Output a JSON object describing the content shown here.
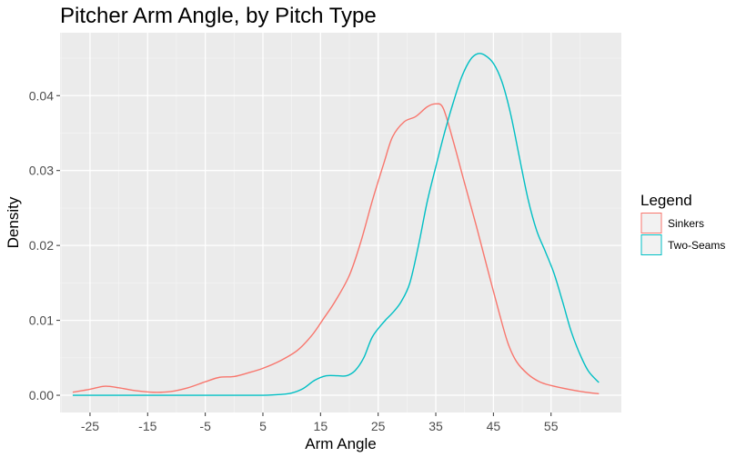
{
  "chart_data": {
    "type": "line",
    "title": "Pitcher Arm Angle, by Pitch Type",
    "xlabel": "Arm Angle",
    "ylabel": "Density",
    "xlim": [
      -30.2,
      67.2
    ],
    "ylim": [
      -0.0023,
      0.0484
    ],
    "x_ticks": [
      -25,
      -15,
      -5,
      5,
      15,
      25,
      35,
      45,
      55
    ],
    "x_tick_labels": [
      "-25",
      "-15",
      "-5",
      "5",
      "15",
      "25",
      "35",
      "45",
      "55"
    ],
    "y_ticks": [
      0.0,
      0.01,
      0.02,
      0.03,
      0.04
    ],
    "y_tick_labels": [
      "0.00",
      "0.01",
      "0.02",
      "0.03",
      "0.04"
    ],
    "grid": true,
    "legend": {
      "title": "Legend",
      "position": "right"
    },
    "series": [
      {
        "name": "Sinkers",
        "color": "#F8766D",
        "points": [
          [
            -28,
            0.0004
          ],
          [
            -25,
            0.0008
          ],
          [
            -22.5,
            0.0012
          ],
          [
            -20,
            0.001
          ],
          [
            -17,
            0.0006
          ],
          [
            -14,
            0.0004
          ],
          [
            -11,
            0.0005
          ],
          [
            -8,
            0.001
          ],
          [
            -5,
            0.0018
          ],
          [
            -2.5,
            0.0024
          ],
          [
            0,
            0.0025
          ],
          [
            2.5,
            0.003
          ],
          [
            5,
            0.0036
          ],
          [
            8,
            0.0046
          ],
          [
            11,
            0.006
          ],
          [
            13.5,
            0.008
          ],
          [
            15.5,
            0.0102
          ],
          [
            17.5,
            0.0125
          ],
          [
            20,
            0.016
          ],
          [
            22,
            0.0205
          ],
          [
            24,
            0.026
          ],
          [
            26,
            0.031
          ],
          [
            27.5,
            0.0345
          ],
          [
            29.5,
            0.0365
          ],
          [
            31.5,
            0.0372
          ],
          [
            33.5,
            0.0385
          ],
          [
            35,
            0.0389
          ],
          [
            36.3,
            0.0383
          ],
          [
            38,
            0.034
          ],
          [
            40,
            0.0283
          ],
          [
            42,
            0.0227
          ],
          [
            44,
            0.0168
          ],
          [
            46,
            0.011
          ],
          [
            47.5,
            0.007
          ],
          [
            49,
            0.0045
          ],
          [
            51,
            0.0028
          ],
          [
            53,
            0.0018
          ],
          [
            55,
            0.0013
          ],
          [
            58,
            0.0008
          ],
          [
            61,
            0.0004
          ],
          [
            63.3,
            0.0002
          ]
        ]
      },
      {
        "name": "Two-Seams",
        "color": "#00BFC4",
        "points": [
          [
            -28,
            0.0
          ],
          [
            -20,
            0.0
          ],
          [
            -10,
            0.0
          ],
          [
            0,
            0.0
          ],
          [
            5,
            0.0
          ],
          [
            8,
            0.0001
          ],
          [
            10,
            0.0003
          ],
          [
            12,
            0.0009
          ],
          [
            14,
            0.002
          ],
          [
            16,
            0.0026
          ],
          [
            18,
            0.0026
          ],
          [
            19.5,
            0.0026
          ],
          [
            21,
            0.0033
          ],
          [
            22.5,
            0.005
          ],
          [
            24,
            0.0078
          ],
          [
            26,
            0.0098
          ],
          [
            27.5,
            0.011
          ],
          [
            29,
            0.0125
          ],
          [
            30.5,
            0.015
          ],
          [
            32,
            0.02
          ],
          [
            33.5,
            0.0258
          ],
          [
            35,
            0.0305
          ],
          [
            36.5,
            0.035
          ],
          [
            38,
            0.039
          ],
          [
            39.5,
            0.0425
          ],
          [
            41,
            0.0448
          ],
          [
            42.3,
            0.0456
          ],
          [
            43.5,
            0.0454
          ],
          [
            45,
            0.0443
          ],
          [
            46.5,
            0.0418
          ],
          [
            48,
            0.0375
          ],
          [
            49.5,
            0.0318
          ],
          [
            51,
            0.0262
          ],
          [
            52.5,
            0.022
          ],
          [
            54,
            0.0192
          ],
          [
            55.5,
            0.0163
          ],
          [
            57,
            0.0125
          ],
          [
            58.5,
            0.0085
          ],
          [
            60,
            0.0055
          ],
          [
            61.5,
            0.0032
          ],
          [
            63.3,
            0.0017
          ]
        ]
      }
    ]
  }
}
